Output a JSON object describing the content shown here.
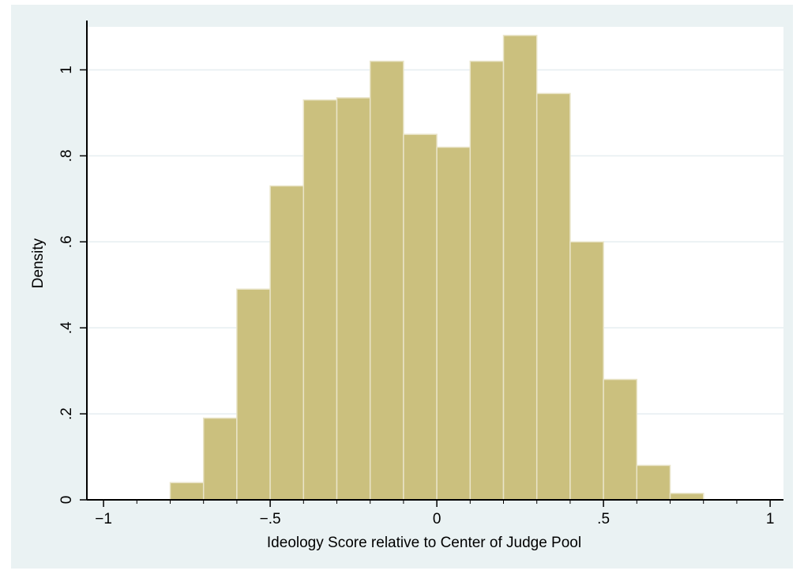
{
  "chart_data": {
    "type": "bar",
    "subtype": "histogram",
    "xlabel": "Ideology Score relative to Center of Judge Pool",
    "ylabel": "Density",
    "xlim": [
      -1.05,
      1.04
    ],
    "ylim": [
      0,
      1.1
    ],
    "x_ticks": [
      -1,
      -0.5,
      0,
      0.5,
      1
    ],
    "x_tick_labels": [
      "−1",
      "−.5",
      "0",
      ".5",
      "1"
    ],
    "y_ticks": [
      0,
      0.2,
      0.4,
      0.6,
      0.8,
      1
    ],
    "y_tick_labels": [
      "0",
      ".2",
      ".4",
      ".6",
      ".8",
      "1"
    ],
    "bin_width": 0.1,
    "bins": [
      {
        "start": -0.8,
        "end": -0.7,
        "density": 0.04
      },
      {
        "start": -0.7,
        "end": -0.6,
        "density": 0.19
      },
      {
        "start": -0.6,
        "end": -0.5,
        "density": 0.49
      },
      {
        "start": -0.5,
        "end": -0.4,
        "density": 0.73
      },
      {
        "start": -0.4,
        "end": -0.3,
        "density": 0.93
      },
      {
        "start": -0.3,
        "end": -0.2,
        "density": 0.935
      },
      {
        "start": -0.2,
        "end": -0.1,
        "density": 1.02
      },
      {
        "start": -0.1,
        "end": 0.0,
        "density": 0.85
      },
      {
        "start": 0.0,
        "end": 0.1,
        "density": 0.82
      },
      {
        "start": 0.1,
        "end": 0.2,
        "density": 1.02
      },
      {
        "start": 0.2,
        "end": 0.3,
        "density": 1.08
      },
      {
        "start": 0.3,
        "end": 0.4,
        "density": 0.945
      },
      {
        "start": 0.4,
        "end": 0.5,
        "density": 0.6
      },
      {
        "start": 0.5,
        "end": 0.6,
        "density": 0.28
      },
      {
        "start": 0.6,
        "end": 0.7,
        "density": 0.08
      },
      {
        "start": 0.7,
        "end": 0.8,
        "density": 0.015
      }
    ],
    "grid": true,
    "legend": "none",
    "colors": {
      "bar_fill": "#cbc07e",
      "bar_stroke": "#e9e4c8",
      "plot_background": "#ffffff",
      "frame_background": "#eaf2f3",
      "gridline": "#e6eef0",
      "axis": "#000000"
    }
  }
}
